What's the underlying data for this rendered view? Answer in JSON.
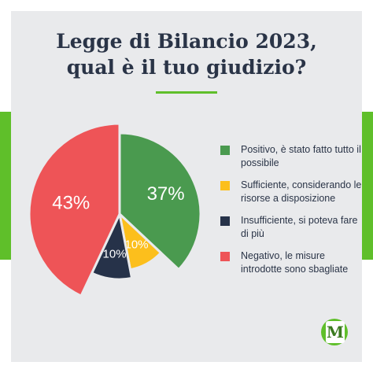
{
  "title": {
    "line1": "Legge di Bilancio 2023,",
    "line2": "qual è il tuo giudizio?"
  },
  "chart_data": {
    "type": "pie",
    "title": "Legge di Bilancio 2023, qual è il tuo giudizio?",
    "slices": [
      {
        "label": "Positivo, è stato fatto tutto il possibile",
        "value": 37,
        "display": "37%",
        "color": "#4a9a4f"
      },
      {
        "label": "Sufficiente, considerando le risorse a disposizione",
        "value": 10,
        "display": "10%",
        "color": "#fcbf1c"
      },
      {
        "label": "Insufficiente, si poteva fare di più",
        "value": 10,
        "display": "10%",
        "color": "#263249"
      },
      {
        "label": "Negativo, le misure introdotte sono sbagliate",
        "value": 43,
        "display": "43%",
        "color": "#ee5457"
      }
    ],
    "legend_position": "right"
  },
  "legend": [
    {
      "text": "Positivo, è stato fatto tutto il possibile",
      "color": "#4a9a4f"
    },
    {
      "text": "Sufficiente, considerando le risorse a disposizione",
      "color": "#fcbf1c"
    },
    {
      "text": "Insufficiente, si poteva fare di più",
      "color": "#263249"
    },
    {
      "text": "Negativo, le misure introdotte sono sbagliate",
      "color": "#ee5457"
    }
  ],
  "logo": {
    "letter": "M",
    "color": "#5fbf2a"
  },
  "colors": {
    "accent": "#5fbf2a",
    "background": "#e9eaec",
    "title": "#2a3447"
  }
}
